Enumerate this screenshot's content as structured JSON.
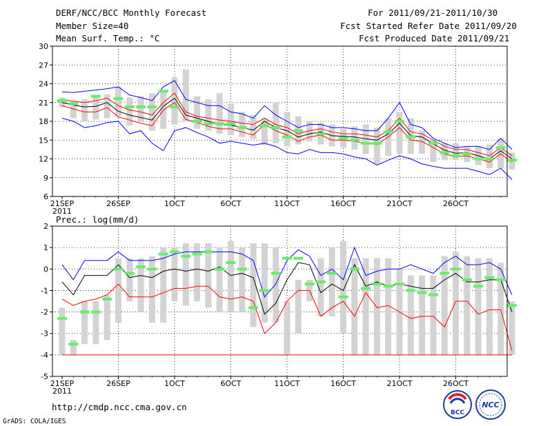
{
  "header": {
    "title": "DERF/NCC/BCC Monthly Forecast",
    "member_size": "Member Size=40",
    "period": "For 2011/09/21-2011/10/30",
    "started": "Fcst Started Refer Date 2011/09/20",
    "produced": "Fcst Produced Date 2011/09/21"
  },
  "footer": {
    "url": "http://cmdp.ncc.cma.gov.cn",
    "credit": "GrADS: COLA/IGES",
    "logo_bcc": "BCC",
    "logo_ncc": "NCC"
  },
  "colors": {
    "ensemble": "#0000ff",
    "mean": "#000000",
    "observed": "#ff0000",
    "bar": "#d3d3d3",
    "marker": "#66ee66"
  },
  "chart_data": [
    {
      "type": "line",
      "title": "Mean Surf. Temp.: °C",
      "ylim": [
        6,
        30
      ],
      "yticks": [
        "30",
        "27",
        "24",
        "21",
        "18",
        "15",
        "12",
        "9",
        "6"
      ],
      "xticks": [
        {
          "day": 0,
          "label": "21SEP",
          "sublabel": "2011"
        },
        {
          "day": 5,
          "label": "26SEP"
        },
        {
          "day": 10,
          "label": "1OCT"
        },
        {
          "day": 15,
          "label": "6OCT"
        },
        {
          "day": 20,
          "label": "11OCT"
        },
        {
          "day": 25,
          "label": "16OCT"
        },
        {
          "day": 30,
          "label": "21OCT"
        },
        {
          "day": 35,
          "label": "26OCT"
        }
      ],
      "box_low": [
        20.3,
        18.5,
        18.0,
        18.3,
        18.5,
        18.8,
        17.3,
        18.0,
        16.5,
        16.8,
        17.5,
        18.0,
        16.8,
        16.5,
        16.0,
        15.8,
        15.5,
        15.2,
        14.2,
        14.5,
        14.0,
        14.3,
        14.8,
        14.3,
        14.0,
        13.8,
        13.5,
        12.8,
        11.2,
        12.5,
        12.8,
        12.8,
        12.8,
        11.5,
        11.8,
        11.8,
        11.5,
        11.0,
        10.5,
        10.5,
        10.3
      ],
      "box_high": [
        21.8,
        21.3,
        21.5,
        22.0,
        22.3,
        23.5,
        21.8,
        22.0,
        22.5,
        23.0,
        25.0,
        26.3,
        22.0,
        21.5,
        22.5,
        20.8,
        19.5,
        19.0,
        18.5,
        21.0,
        19.5,
        18.8,
        18.0,
        17.8,
        17.5,
        16.8,
        17.2,
        17.5,
        17.0,
        18.5,
        19.5,
        18.5,
        16.5,
        15.0,
        14.5,
        14.5,
        14.0,
        14.0,
        14.3,
        15.3,
        13.0
      ],
      "markers": [
        21.3,
        20.8,
        null,
        22.0,
        null,
        21.6,
        20.3,
        20.3,
        20.3,
        22.8,
        20.3,
        null,
        18.0,
        17.6,
        17.6,
        17.6,
        17.0,
        null,
        17.3,
        17.0,
        15.5,
        16.5,
        null,
        16.0,
        null,
        15.3,
        15.0,
        14.5,
        14.5,
        16.3,
        18.0,
        15.5,
        null,
        14.5,
        13.0,
        12.5,
        12.8,
        12.0,
        12.0,
        13.8,
        11.8
      ],
      "series": [
        {
          "name": "ensemble max",
          "color": "#0000ff",
          "values": [
            22.7,
            22.6,
            22.8,
            23.0,
            23.2,
            23.5,
            22.2,
            21.8,
            21.3,
            23.5,
            24.5,
            21.5,
            21.0,
            20.5,
            20.5,
            19.5,
            19.2,
            18.5,
            20.5,
            19.0,
            18.0,
            17.0,
            17.5,
            17.5,
            17.0,
            17.0,
            16.8,
            16.5,
            16.5,
            18.5,
            21.0,
            17.5,
            17.0,
            15.3,
            14.5,
            13.8,
            14.0,
            14.0,
            13.5,
            15.3,
            13.5
          ]
        },
        {
          "name": "observed",
          "color": "#ff0000",
          "values": [
            21.5,
            21.2,
            21.0,
            21.3,
            21.7,
            20.5,
            19.8,
            19.5,
            19.0,
            21.0,
            22.5,
            19.5,
            18.8,
            18.5,
            18.2,
            18.0,
            17.7,
            17.5,
            18.5,
            17.5,
            17.0,
            16.0,
            16.5,
            16.8,
            16.3,
            16.0,
            16.0,
            15.8,
            15.5,
            16.5,
            18.5,
            16.3,
            16.0,
            15.0,
            14.0,
            13.5,
            13.5,
            13.0,
            12.5,
            13.8,
            12.5
          ]
        },
        {
          "name": "ensemble mean",
          "color": "#000000",
          "values": [
            21.0,
            20.6,
            20.3,
            20.4,
            21.0,
            19.6,
            19.0,
            18.6,
            18.2,
            20.4,
            21.7,
            19.0,
            18.5,
            18.0,
            17.5,
            17.4,
            17.0,
            16.6,
            18.0,
            17.0,
            16.5,
            15.5,
            16.0,
            16.3,
            15.7,
            15.6,
            15.5,
            15.2,
            15.0,
            16.0,
            17.7,
            15.7,
            15.5,
            14.4,
            13.4,
            12.9,
            13.0,
            12.5,
            12.0,
            13.3,
            12.0
          ]
        },
        {
          "name": "ensemble min (red lower)",
          "color": "#ff0000",
          "values": [
            20.5,
            20.0,
            19.5,
            19.5,
            20.2,
            18.7,
            18.2,
            17.7,
            17.3,
            19.8,
            21.0,
            18.3,
            17.8,
            17.2,
            16.8,
            16.8,
            16.3,
            15.8,
            17.5,
            16.5,
            15.8,
            14.8,
            15.5,
            15.8,
            15.0,
            15.0,
            14.8,
            14.5,
            14.3,
            15.5,
            17.0,
            15.0,
            14.8,
            13.8,
            12.8,
            12.3,
            12.5,
            12.0,
            11.5,
            12.8,
            11.5
          ]
        },
        {
          "name": "ensemble min",
          "color": "#0000ff",
          "values": [
            18.5,
            18.0,
            17.0,
            17.3,
            17.8,
            18.0,
            16.0,
            16.5,
            14.5,
            13.3,
            16.5,
            17.0,
            16.2,
            15.5,
            14.5,
            14.8,
            14.5,
            14.2,
            14.5,
            14.0,
            13.0,
            12.8,
            13.5,
            13.0,
            13.0,
            12.8,
            12.3,
            12.0,
            11.0,
            11.8,
            12.5,
            12.0,
            11.2,
            10.8,
            10.5,
            10.5,
            10.5,
            10.0,
            9.5,
            10.5,
            8.7
          ]
        }
      ]
    },
    {
      "type": "line",
      "title": "Prec.: log(mm/d)",
      "ylim": [
        -5,
        2
      ],
      "yticks": [
        "2",
        "1",
        "0",
        "-1",
        "-2",
        "-3",
        "-4",
        "-5"
      ],
      "xticks": [
        {
          "day": 0,
          "label": "21SEP",
          "sublabel": "2011"
        },
        {
          "day": 5,
          "label": "26SEP"
        },
        {
          "day": 10,
          "label": "1OCT"
        },
        {
          "day": 15,
          "label": "6OCT"
        },
        {
          "day": 20,
          "label": "11OCT"
        },
        {
          "day": 25,
          "label": "16OCT"
        },
        {
          "day": 30,
          "label": "21OCT"
        },
        {
          "day": 35,
          "label": "26OCT"
        }
      ],
      "box_low": [
        -4,
        -4,
        -3.5,
        -3.5,
        -3.3,
        -2.5,
        -1.5,
        -2.0,
        -2.5,
        -2.5,
        -1.5,
        -1.7,
        -1.5,
        -1.8,
        -2.0,
        -2.0,
        -2.0,
        -2.7,
        -2.5,
        -2.5,
        -4.0,
        -3.0,
        -1.5,
        -2.2,
        -2.2,
        -3.0,
        -4.0,
        -4.0,
        -4.0,
        -4.0,
        -4.0,
        -4.0,
        -4.0,
        -4.0,
        -4.0,
        -4.0,
        -4.0,
        -4.0,
        -4.0,
        -4.0,
        -4.0
      ],
      "box_high": [
        -1.8,
        -3.3,
        -1.5,
        -1.5,
        -1.2,
        0.5,
        0.5,
        0.5,
        0.6,
        1.0,
        1.0,
        1.2,
        1.2,
        1.2,
        1.0,
        1.3,
        1.0,
        1.2,
        1.2,
        1.0,
        -1.5,
        -0.5,
        -0.5,
        0.5,
        1.0,
        1.3,
        0.5,
        0.5,
        0.5,
        0.5,
        0.0,
        -0.3,
        -0.3,
        -0.3,
        0.6,
        0.8,
        0.6,
        0.5,
        0.5,
        0.3,
        -1.5
      ],
      "markers": [
        -2.3,
        -3.5,
        -2.0,
        -2.0,
        -1.4,
        0.0,
        -0.2,
        0.1,
        0.0,
        0.7,
        0.8,
        0.6,
        0.7,
        0.8,
        0.0,
        0.3,
        0.0,
        -1.8,
        -1.0,
        -0.2,
        0.5,
        0.5,
        -0.7,
        -0.6,
        -0.2,
        -1.3,
        0.0,
        -0.9,
        -0.7,
        -0.8,
        -0.7,
        -1.0,
        -1.1,
        -1.2,
        -0.2,
        -0.0,
        -0.5,
        -0.8,
        -0.4,
        -0.5,
        -1.7
      ],
      "series": [
        {
          "name": "ensemble max",
          "color": "#0000ff",
          "values": [
            0.2,
            -0.5,
            0.4,
            0.4,
            0.4,
            0.8,
            0.4,
            0.4,
            0.4,
            0.5,
            0.7,
            0.8,
            0.8,
            0.8,
            0.8,
            0.8,
            0.7,
            0.4,
            -1.3,
            -0.7,
            0.4,
            0.9,
            0.6,
            -0.3,
            0.0,
            -0.5,
            1.0,
            -0.3,
            -0.1,
            0.0,
            0.0,
            0.2,
            0.0,
            -0.2,
            0.3,
            0.6,
            0.2,
            0.2,
            0.3,
            0.0,
            -1.2
          ]
        },
        {
          "name": "ensemble mean",
          "color": "#000000",
          "values": [
            -0.6,
            -1.2,
            -0.3,
            -0.3,
            -0.3,
            0.2,
            -0.4,
            -0.3,
            -0.4,
            -0.1,
            0.0,
            -0.1,
            0.0,
            -0.1,
            0.1,
            -0.3,
            -0.2,
            -0.4,
            -2.1,
            -1.6,
            -0.5,
            0.3,
            0.2,
            -1.1,
            -0.7,
            -1.0,
            0.2,
            -0.8,
            -0.6,
            -0.8,
            -0.7,
            -0.8,
            -0.9,
            -0.9,
            -0.5,
            -0.2,
            -0.6,
            -0.6,
            -0.5,
            -0.5,
            -2.0
          ]
        },
        {
          "name": "ensemble min (red)",
          "color": "#ff0000",
          "values": [
            -1.4,
            -1.7,
            -1.5,
            -1.4,
            -1.2,
            -0.7,
            -1.3,
            -1.3,
            -1.3,
            -1.1,
            -0.9,
            -0.9,
            -0.8,
            -0.8,
            -1.3,
            -1.4,
            -1.3,
            -1.5,
            -3.0,
            -2.5,
            -1.5,
            -1.0,
            -1.0,
            -2.2,
            -1.8,
            -1.5,
            -2.2,
            -1.1,
            -1.8,
            -1.7,
            -2.0,
            -2.3,
            -2.2,
            -2.2,
            -2.7,
            -1.5,
            -1.5,
            -2.1,
            -1.9,
            -1.9,
            -3.8
          ]
        },
        {
          "name": "ensemble min",
          "color": "#ff0000",
          "values": [
            -4,
            -4,
            -4,
            -4,
            -4,
            -4,
            -4,
            -4,
            -4,
            -4,
            -4,
            -4,
            -4,
            -4,
            -4,
            -4,
            -4,
            -4,
            -4,
            -4,
            -4,
            -4,
            -4,
            -4,
            -4,
            -4,
            -4,
            -4,
            -4,
            -4,
            -4,
            -4,
            -4,
            -4,
            -4,
            -4,
            -4,
            -4,
            -4,
            -4,
            -4
          ]
        }
      ]
    }
  ]
}
